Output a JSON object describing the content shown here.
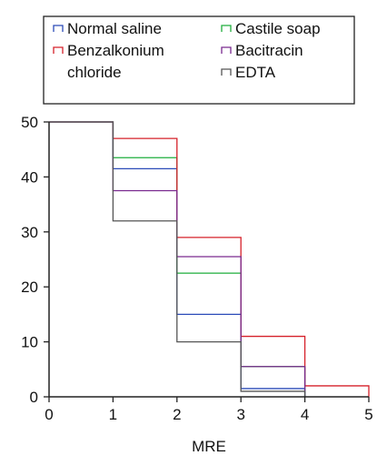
{
  "chart_data": {
    "type": "line",
    "step": true,
    "xlabel": "MRE",
    "ylabel": "",
    "xlim": [
      0,
      5
    ],
    "ylim": [
      0,
      50
    ],
    "x_ticks": [
      "0",
      "1",
      "2",
      "3",
      "4",
      "5"
    ],
    "y_ticks": [
      "0",
      "10",
      "20",
      "30",
      "40",
      "50"
    ],
    "grid": false,
    "legend_position": "top",
    "legend": [
      {
        "label": "Normal saline",
        "color": "#2b4bb8"
      },
      {
        "label": "Castile soap",
        "color": "#1fae3c"
      },
      {
        "label": "Benzalkonium chloride",
        "label_lines": [
          "Benzalkonium",
          "chloride"
        ],
        "color": "#d6212a"
      },
      {
        "label": "Bacitracin",
        "color": "#7a2a8f"
      },
      {
        "label": "EDTA",
        "color": "#555555"
      }
    ],
    "series": [
      {
        "name": "Normal saline",
        "color": "#2b4bb8",
        "steps": [
          [
            0,
            1,
            50
          ],
          [
            1,
            2,
            41.5
          ],
          [
            2,
            3,
            15
          ],
          [
            3,
            4,
            1.5
          ]
        ]
      },
      {
        "name": "Castile soap",
        "color": "#1fae3c",
        "steps": [
          [
            0,
            1,
            50
          ],
          [
            1,
            2,
            43.5
          ],
          [
            2,
            3,
            22.5
          ],
          [
            3,
            4,
            5.5
          ]
        ]
      },
      {
        "name": "Benzalkonium chloride",
        "color": "#d6212a",
        "steps": [
          [
            0,
            1,
            50
          ],
          [
            1,
            2,
            47
          ],
          [
            2,
            3,
            29
          ],
          [
            3,
            4,
            11
          ],
          [
            4,
            5,
            2
          ]
        ]
      },
      {
        "name": "Bacitracin",
        "color": "#7a2a8f",
        "steps": [
          [
            0,
            1,
            50
          ],
          [
            1,
            2,
            37.5
          ],
          [
            2,
            3,
            25.5
          ],
          [
            3,
            4,
            5.5
          ]
        ]
      },
      {
        "name": "EDTA",
        "color": "#555555",
        "steps": [
          [
            0,
            1,
            50
          ],
          [
            1,
            2,
            32
          ],
          [
            2,
            3,
            10
          ],
          [
            3,
            4,
            1
          ]
        ]
      }
    ]
  }
}
